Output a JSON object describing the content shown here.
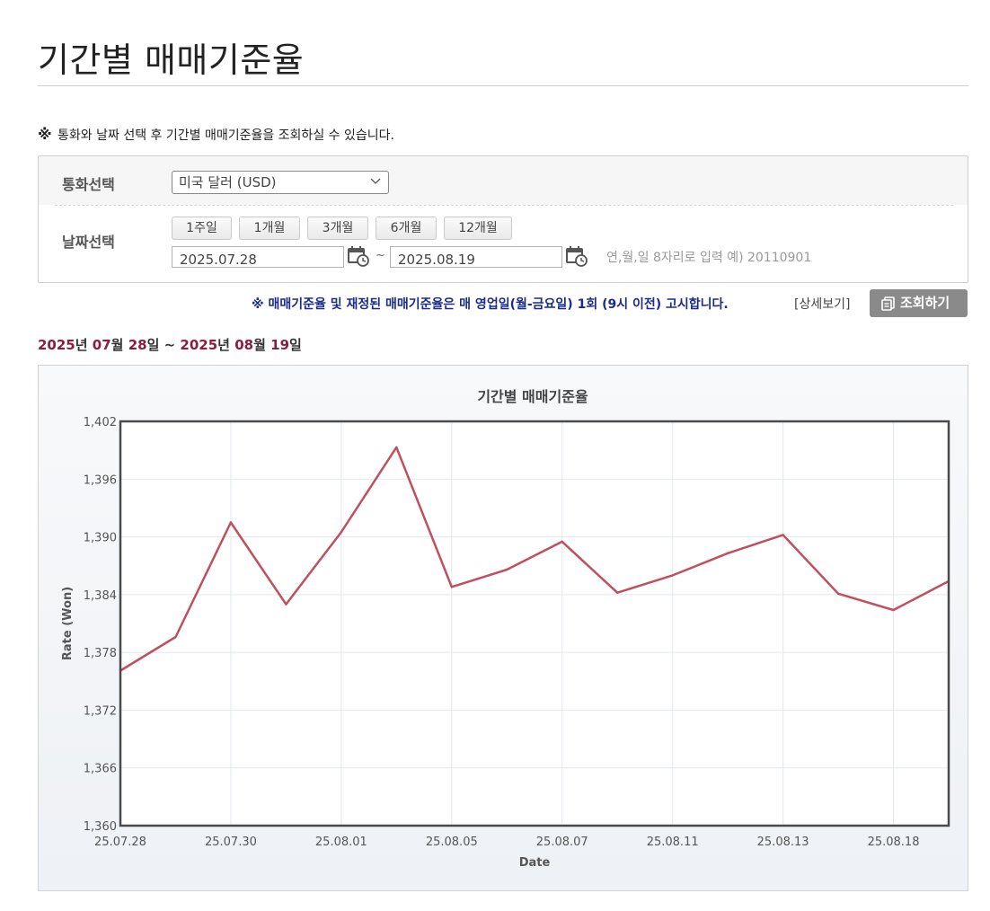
{
  "page": {
    "title": "기간별 매매기준율"
  },
  "notice": {
    "mark": "※",
    "text": "통화와 날짜 선택 후 기간별 매매기준율을 조회하실 수 있습니다."
  },
  "filters": {
    "currency_label": "통화선택",
    "currency_value": "미국 달러 (USD)",
    "date_label": "날짜선택",
    "period_buttons": [
      "1주일",
      "1개월",
      "3개월",
      "6개월",
      "12개월"
    ],
    "start_date": "2025.07.28",
    "end_date": "2025.08.19",
    "tilde": "~",
    "hint": "연,월,일 8자리로 입력 예) 20110901"
  },
  "info": {
    "notice": "※ 매매기준율 및 재정된 매매기준율은 매 영업일(월-금요일) 1회 (9시 이전) 고시합니다.",
    "detail_link": "[상세보기]",
    "search_button": "조회하기"
  },
  "range": {
    "start_year": "2025",
    "start_year_unit": "년",
    "start_month": "07",
    "start_month_unit": "월",
    "start_day": "28",
    "start_day_unit": "일",
    "sep": " ~ ",
    "end_year": "2025",
    "end_year_unit": "년",
    "end_month": "08",
    "end_month_unit": "월",
    "end_day": "19",
    "end_day_unit": "일"
  },
  "colors": {
    "accent": "#8b1e3f",
    "line": "#c0505e",
    "notice_blue": "#1a2c8a",
    "button_gray": "#8a8a8a"
  },
  "chart_data": {
    "type": "line",
    "title": "기간별 매매기준율",
    "xlabel": "Date",
    "ylabel": "Rate (Won)",
    "ylim": [
      1360,
      1402
    ],
    "yticks": [
      "1,360",
      "1,366",
      "1,372",
      "1,378",
      "1,384",
      "1,390",
      "1,396",
      "1,402"
    ],
    "xticks": [
      "25.07.28",
      "25.07.30",
      "25.08.01",
      "25.08.05",
      "25.08.07",
      "25.08.11",
      "25.08.13",
      "25.08.18"
    ],
    "x": [
      "25.07.28",
      "25.07.29",
      "25.07.30",
      "25.07.31",
      "25.08.01",
      "25.08.04",
      "25.08.05",
      "25.08.06",
      "25.08.07",
      "25.08.08",
      "25.08.11",
      "25.08.12",
      "25.08.13",
      "25.08.14",
      "25.08.18",
      "25.08.19"
    ],
    "series": [
      {
        "values": [
          1376.1,
          1379.6,
          1391.5,
          1383.0,
          1390.5,
          1399.3,
          1384.8,
          1386.6,
          1389.5,
          1384.2,
          1386.0,
          1388.3,
          1390.2,
          1384.1,
          1382.4,
          1385.4
        ]
      }
    ],
    "grid": true,
    "legend": "none"
  }
}
